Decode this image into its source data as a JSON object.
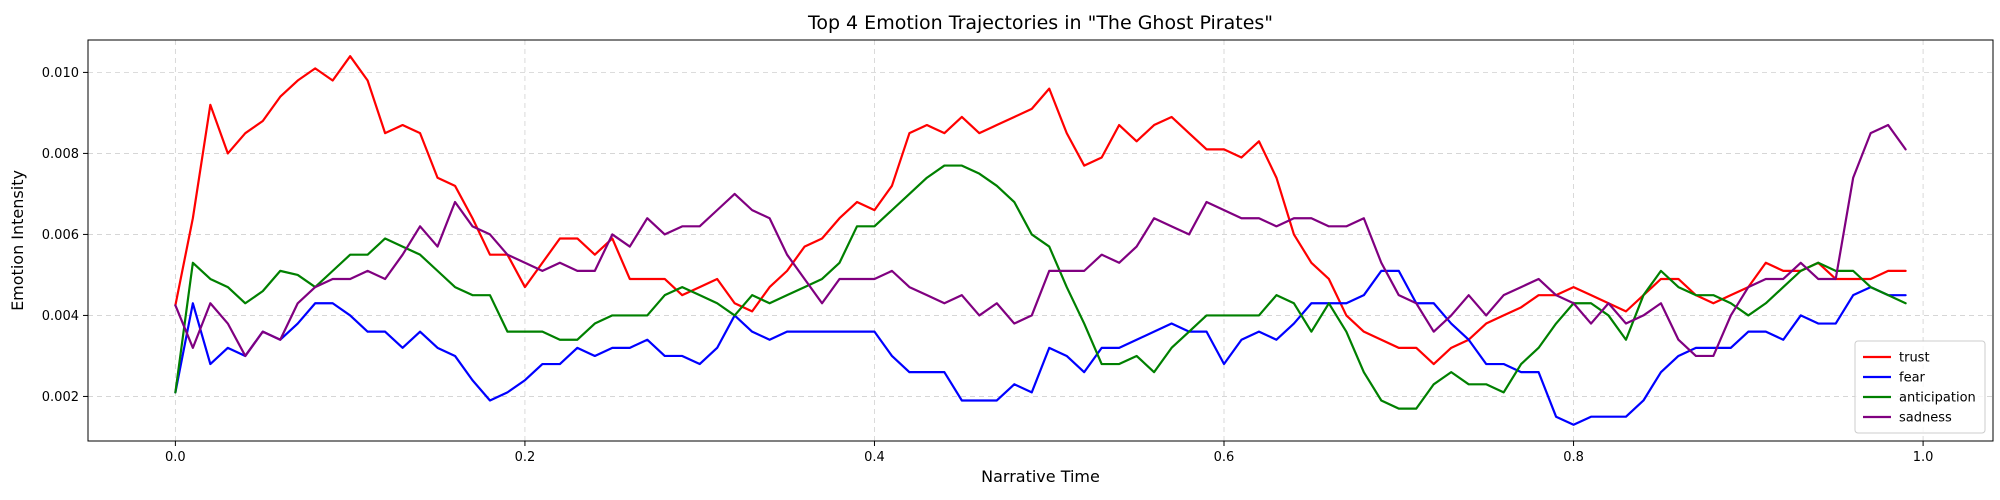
{
  "chart_data": {
    "type": "line",
    "title": "Top 4 Emotion Trajectories in \"The Ghost Pirates\"",
    "xlabel": "Narrative Time",
    "ylabel": "Emotion Intensity",
    "xlim": [
      -0.05,
      1.04
    ],
    "ylim": [
      0.0009,
      0.0108
    ],
    "xticks": [
      0.0,
      0.2,
      0.4,
      0.6,
      0.8,
      1.0
    ],
    "xtick_labels": [
      "0.0",
      "0.2",
      "0.4",
      "0.6",
      "0.8",
      "1.0"
    ],
    "yticks": [
      0.002,
      0.004,
      0.006,
      0.008,
      0.01
    ],
    "ytick_labels": [
      "0.002",
      "0.004",
      "0.006",
      "0.008",
      "0.010"
    ],
    "grid": true,
    "legend_position": "lower-right",
    "x": [
      0.0,
      0.01,
      0.02,
      0.03,
      0.04,
      0.05,
      0.06,
      0.07,
      0.08,
      0.09,
      0.1,
      0.11,
      0.12,
      0.13,
      0.14,
      0.15,
      0.16,
      0.17,
      0.18,
      0.19,
      0.2,
      0.21,
      0.22,
      0.23,
      0.24,
      0.25,
      0.26,
      0.27,
      0.28,
      0.29,
      0.3,
      0.31,
      0.32,
      0.33,
      0.34,
      0.35,
      0.36,
      0.37,
      0.38,
      0.39,
      0.4,
      0.41,
      0.42,
      0.43,
      0.44,
      0.45,
      0.46,
      0.47,
      0.48,
      0.49,
      0.5,
      0.51,
      0.52,
      0.53,
      0.54,
      0.55,
      0.56,
      0.57,
      0.58,
      0.59,
      0.6,
      0.61,
      0.62,
      0.63,
      0.64,
      0.65,
      0.66,
      0.67,
      0.68,
      0.69,
      0.7,
      0.71,
      0.72,
      0.73,
      0.74,
      0.75,
      0.76,
      0.77,
      0.78,
      0.79,
      0.8,
      0.81,
      0.82,
      0.83,
      0.84,
      0.85,
      0.86,
      0.87,
      0.88,
      0.89,
      0.9,
      0.91,
      0.92,
      0.93,
      0.94,
      0.95,
      0.96,
      0.97,
      0.98,
      0.99
    ],
    "series": [
      {
        "name": "trust",
        "color": "#ff0000",
        "values": [
          0.00425,
          0.0064,
          0.0092,
          0.008,
          0.0085,
          0.0088,
          0.0094,
          0.0098,
          0.0101,
          0.0098,
          0.0104,
          0.0098,
          0.0085,
          0.0087,
          0.0085,
          0.0074,
          0.0072,
          0.0064,
          0.0055,
          0.0055,
          0.0047,
          0.0053,
          0.0059,
          0.0059,
          0.0055,
          0.0059,
          0.0049,
          0.0049,
          0.0049,
          0.0045,
          0.0047,
          0.0049,
          0.0043,
          0.0041,
          0.0047,
          0.0051,
          0.0057,
          0.0059,
          0.0064,
          0.0068,
          0.0066,
          0.0072,
          0.0085,
          0.0087,
          0.0085,
          0.0089,
          0.0085,
          0.0087,
          0.0089,
          0.0091,
          0.0096,
          0.0085,
          0.0077,
          0.0079,
          0.0087,
          0.0083,
          0.0087,
          0.0089,
          0.0085,
          0.0081,
          0.0081,
          0.0079,
          0.0083,
          0.0074,
          0.006,
          0.0053,
          0.0049,
          0.004,
          0.0036,
          0.0034,
          0.0032,
          0.0032,
          0.0028,
          0.0032,
          0.0034,
          0.0038,
          0.004,
          0.0042,
          0.0045,
          0.0045,
          0.0047,
          0.0045,
          0.0043,
          0.0041,
          0.0045,
          0.0049,
          0.0049,
          0.0045,
          0.0043,
          0.0045,
          0.0047,
          0.0053,
          0.0051,
          0.0051,
          0.0053,
          0.0049,
          0.0049,
          0.0049,
          0.0051,
          0.0051
        ]
      },
      {
        "name": "fear",
        "color": "#0000ff",
        "values": [
          0.0021,
          0.0043,
          0.0028,
          0.0032,
          0.003,
          0.0036,
          0.0034,
          0.0038,
          0.0043,
          0.0043,
          0.004,
          0.0036,
          0.0036,
          0.0032,
          0.0036,
          0.0032,
          0.003,
          0.0024,
          0.0019,
          0.0021,
          0.0024,
          0.0028,
          0.0028,
          0.0032,
          0.003,
          0.0032,
          0.0032,
          0.0034,
          0.003,
          0.003,
          0.0028,
          0.0032,
          0.004,
          0.0036,
          0.0034,
          0.0036,
          0.0036,
          0.0036,
          0.0036,
          0.0036,
          0.0036,
          0.003,
          0.0026,
          0.0026,
          0.0026,
          0.0019,
          0.0019,
          0.0019,
          0.0023,
          0.0021,
          0.0032,
          0.003,
          0.0026,
          0.0032,
          0.0032,
          0.0034,
          0.0036,
          0.0038,
          0.0036,
          0.0036,
          0.0028,
          0.0034,
          0.0036,
          0.0034,
          0.0038,
          0.0043,
          0.0043,
          0.0043,
          0.0045,
          0.0051,
          0.0051,
          0.0043,
          0.0043,
          0.0038,
          0.0034,
          0.0028,
          0.0028,
          0.0026,
          0.0026,
          0.0015,
          0.0013,
          0.0015,
          0.0015,
          0.0015,
          0.0019,
          0.0026,
          0.003,
          0.0032,
          0.0032,
          0.0032,
          0.0036,
          0.0036,
          0.0034,
          0.004,
          0.0038,
          0.0038,
          0.0045,
          0.0047,
          0.0045,
          0.0045
        ]
      },
      {
        "name": "anticipation",
        "color": "#008000",
        "values": [
          0.0021,
          0.0053,
          0.0049,
          0.0047,
          0.0043,
          0.0046,
          0.0051,
          0.005,
          0.0047,
          0.0051,
          0.0055,
          0.0055,
          0.0059,
          0.0057,
          0.0055,
          0.0051,
          0.0047,
          0.0045,
          0.0045,
          0.0036,
          0.0036,
          0.0036,
          0.0034,
          0.0034,
          0.0038,
          0.004,
          0.004,
          0.004,
          0.0045,
          0.0047,
          0.0045,
          0.0043,
          0.004,
          0.0045,
          0.0043,
          0.0045,
          0.0047,
          0.0049,
          0.0053,
          0.0062,
          0.0062,
          0.0066,
          0.007,
          0.0074,
          0.0077,
          0.0077,
          0.0075,
          0.0072,
          0.0068,
          0.006,
          0.0057,
          0.0047,
          0.0038,
          0.0028,
          0.0028,
          0.003,
          0.0026,
          0.0032,
          0.0036,
          0.004,
          0.004,
          0.004,
          0.004,
          0.0045,
          0.0043,
          0.0036,
          0.0043,
          0.0036,
          0.0026,
          0.0019,
          0.0017,
          0.0017,
          0.0023,
          0.0026,
          0.0023,
          0.0023,
          0.0021,
          0.0028,
          0.0032,
          0.0038,
          0.0043,
          0.0043,
          0.004,
          0.0034,
          0.0045,
          0.0051,
          0.0047,
          0.0045,
          0.0045,
          0.0043,
          0.004,
          0.0043,
          0.0047,
          0.0051,
          0.0053,
          0.0051,
          0.0051,
          0.0047,
          0.0045,
          0.0043
        ]
      },
      {
        "name": "sadness",
        "color": "#800080",
        "values": [
          0.00425,
          0.0032,
          0.0043,
          0.0038,
          0.003,
          0.0036,
          0.0034,
          0.0043,
          0.0047,
          0.0049,
          0.0049,
          0.0051,
          0.0049,
          0.0055,
          0.0062,
          0.0057,
          0.0068,
          0.0062,
          0.006,
          0.0055,
          0.0053,
          0.0051,
          0.0053,
          0.0051,
          0.0051,
          0.006,
          0.0057,
          0.0064,
          0.006,
          0.0062,
          0.0062,
          0.0066,
          0.007,
          0.0066,
          0.0064,
          0.0055,
          0.0049,
          0.0043,
          0.0049,
          0.0049,
          0.0049,
          0.0051,
          0.0047,
          0.0045,
          0.0043,
          0.0045,
          0.004,
          0.0043,
          0.0038,
          0.004,
          0.0051,
          0.0051,
          0.0051,
          0.0055,
          0.0053,
          0.0057,
          0.0064,
          0.0062,
          0.006,
          0.0068,
          0.0066,
          0.0064,
          0.0064,
          0.0062,
          0.0064,
          0.0064,
          0.0062,
          0.0062,
          0.0064,
          0.0053,
          0.0045,
          0.0043,
          0.0036,
          0.004,
          0.0045,
          0.004,
          0.0045,
          0.0047,
          0.0049,
          0.0045,
          0.0043,
          0.0038,
          0.0043,
          0.0038,
          0.004,
          0.0043,
          0.0034,
          0.003,
          0.003,
          0.004,
          0.0047,
          0.0049,
          0.0049,
          0.0053,
          0.0049,
          0.0049,
          0.0074,
          0.0085,
          0.0087,
          0.0081
        ]
      }
    ]
  }
}
